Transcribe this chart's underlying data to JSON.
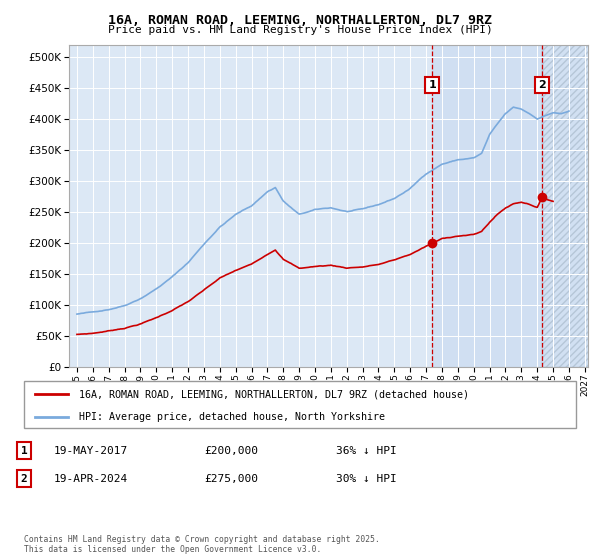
{
  "title": "16A, ROMAN ROAD, LEEMING, NORTHALLERTON, DL7 9RZ",
  "subtitle": "Price paid vs. HM Land Registry's House Price Index (HPI)",
  "legend_entries": [
    "16A, ROMAN ROAD, LEEMING, NORTHALLERTON, DL7 9RZ (detached house)",
    "HPI: Average price, detached house, North Yorkshire"
  ],
  "annotation1": {
    "num": "1",
    "date": "19-MAY-2017",
    "price": "£200,000",
    "note": "36% ↓ HPI"
  },
  "annotation2": {
    "num": "2",
    "date": "19-APR-2024",
    "price": "£275,000",
    "note": "30% ↓ HPI"
  },
  "footer": "Contains HM Land Registry data © Crown copyright and database right 2025.\nThis data is licensed under the Open Government Licence v3.0.",
  "line_color_red": "#cc0000",
  "line_color_blue": "#7aaadd",
  "background_plot": "#dce8f5",
  "vline1_x": 2017.38,
  "vline2_x": 2024.3,
  "sale1_y": 200000,
  "sale2_y": 275000,
  "xlim": [
    1994.5,
    2027.2
  ],
  "ylim": [
    0,
    520000
  ],
  "yticks": [
    0,
    50000,
    100000,
    150000,
    200000,
    250000,
    300000,
    350000,
    400000,
    450000,
    500000
  ],
  "xticks": [
    1995,
    1996,
    1997,
    1998,
    1999,
    2000,
    2001,
    2002,
    2003,
    2004,
    2005,
    2006,
    2007,
    2008,
    2009,
    2010,
    2011,
    2012,
    2013,
    2014,
    2015,
    2016,
    2017,
    2018,
    2019,
    2020,
    2021,
    2022,
    2023,
    2024,
    2025,
    2026,
    2027
  ]
}
